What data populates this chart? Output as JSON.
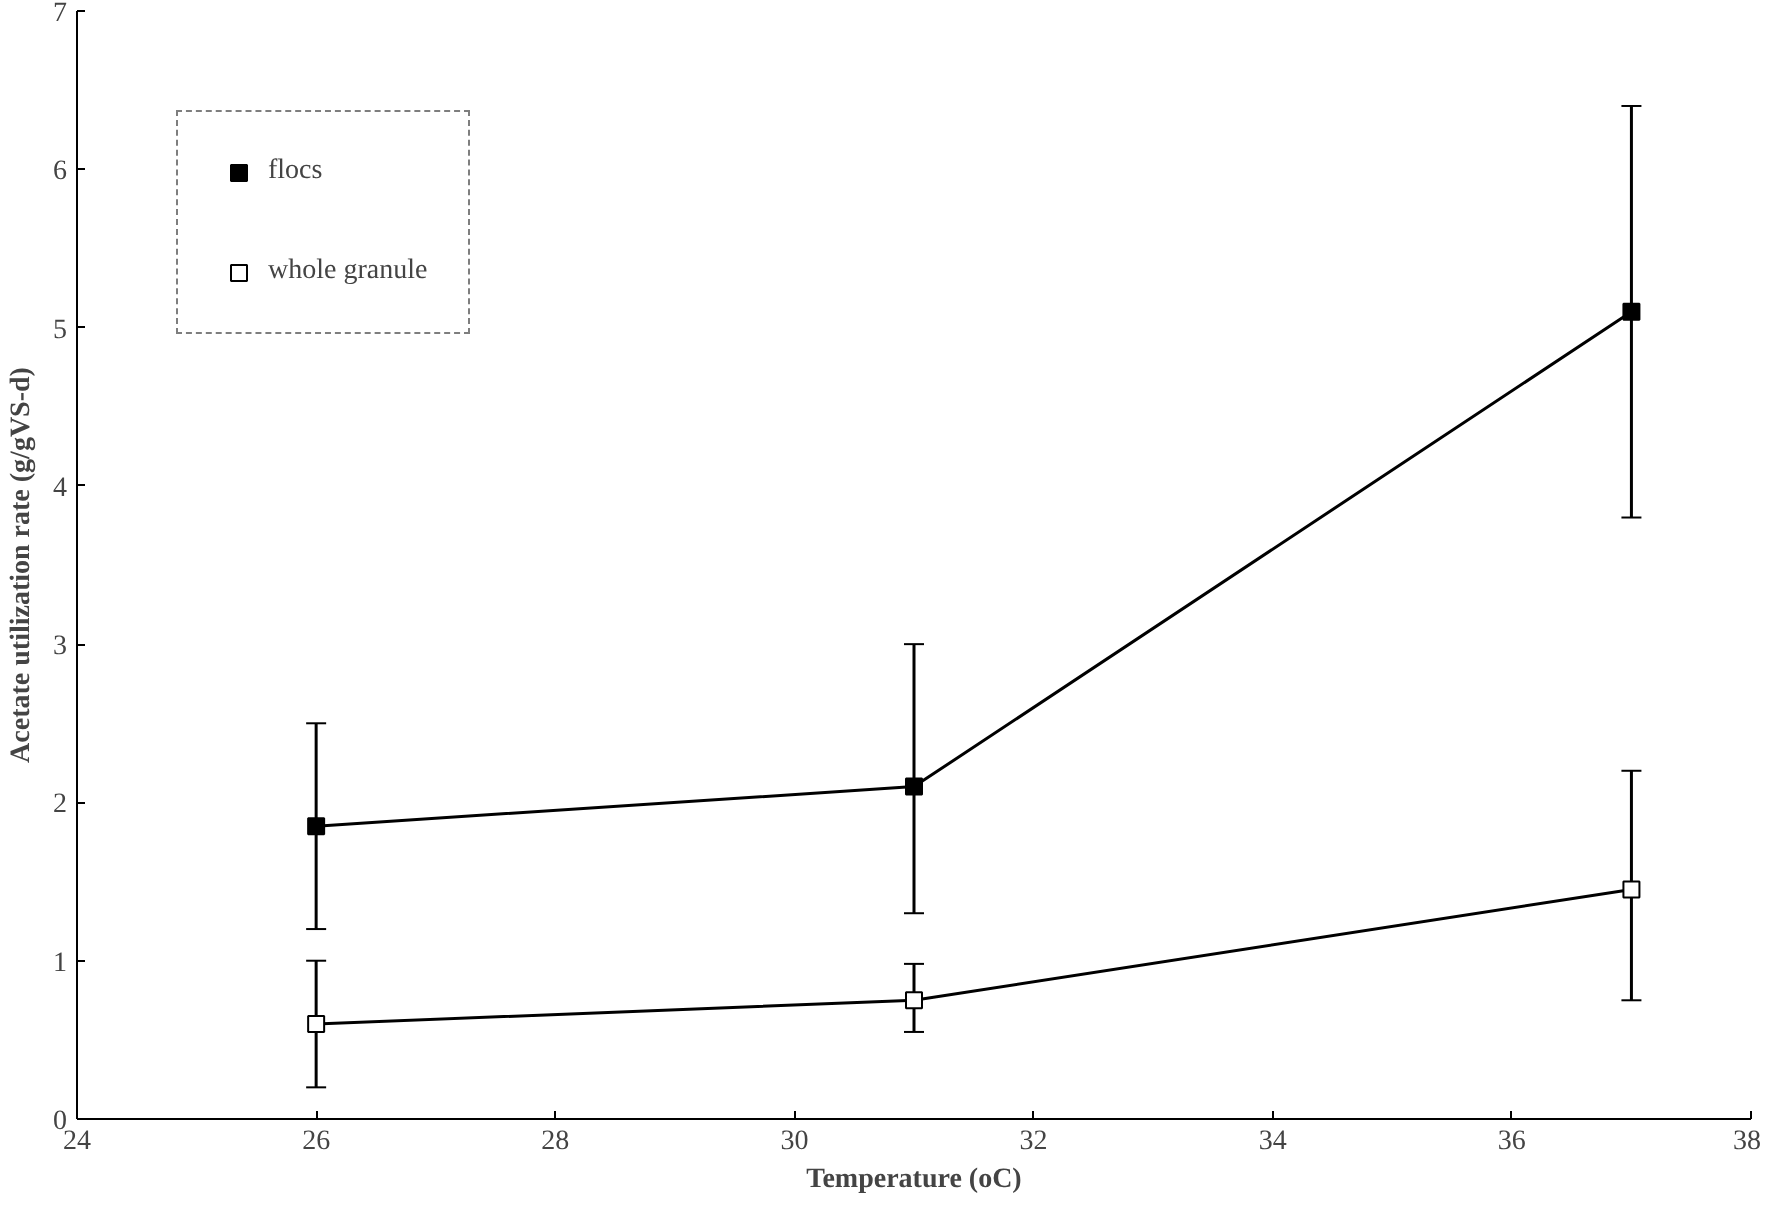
{
  "chart_data": {
    "type": "line",
    "xlabel": "Temperature (oC)",
    "ylabel": "Acetate utilization rate (g/gVS-d)",
    "xlim": [
      24,
      38
    ],
    "xticks": [
      24,
      26,
      28,
      30,
      32,
      34,
      36,
      38
    ],
    "ylim": [
      0,
      7
    ],
    "yticks": [
      0,
      1,
      2,
      3,
      4,
      5,
      6,
      7
    ],
    "grid": false,
    "legend": "top left",
    "x": [
      26,
      31,
      37
    ],
    "series": [
      {
        "name": "flocs",
        "color": "#000000",
        "marker": "square",
        "values": [
          1.85,
          2.1,
          5.1
        ],
        "errors": [
          [
            1.2,
            2.5
          ],
          [
            1.3,
            3.0
          ],
          [
            3.8,
            6.4
          ]
        ]
      },
      {
        "name": "whole granule",
        "color": "#000000",
        "marker": "square",
        "colors": [
          "#ffffff",
          "#ffffff",
          "#ffffff"
        ],
        "values": [
          0.6,
          0.75,
          1.45
        ],
        "errors": [
          [
            0.2,
            1.0
          ],
          [
            0.55,
            0.98
          ],
          [
            0.75,
            2.2
          ]
        ]
      }
    ]
  }
}
